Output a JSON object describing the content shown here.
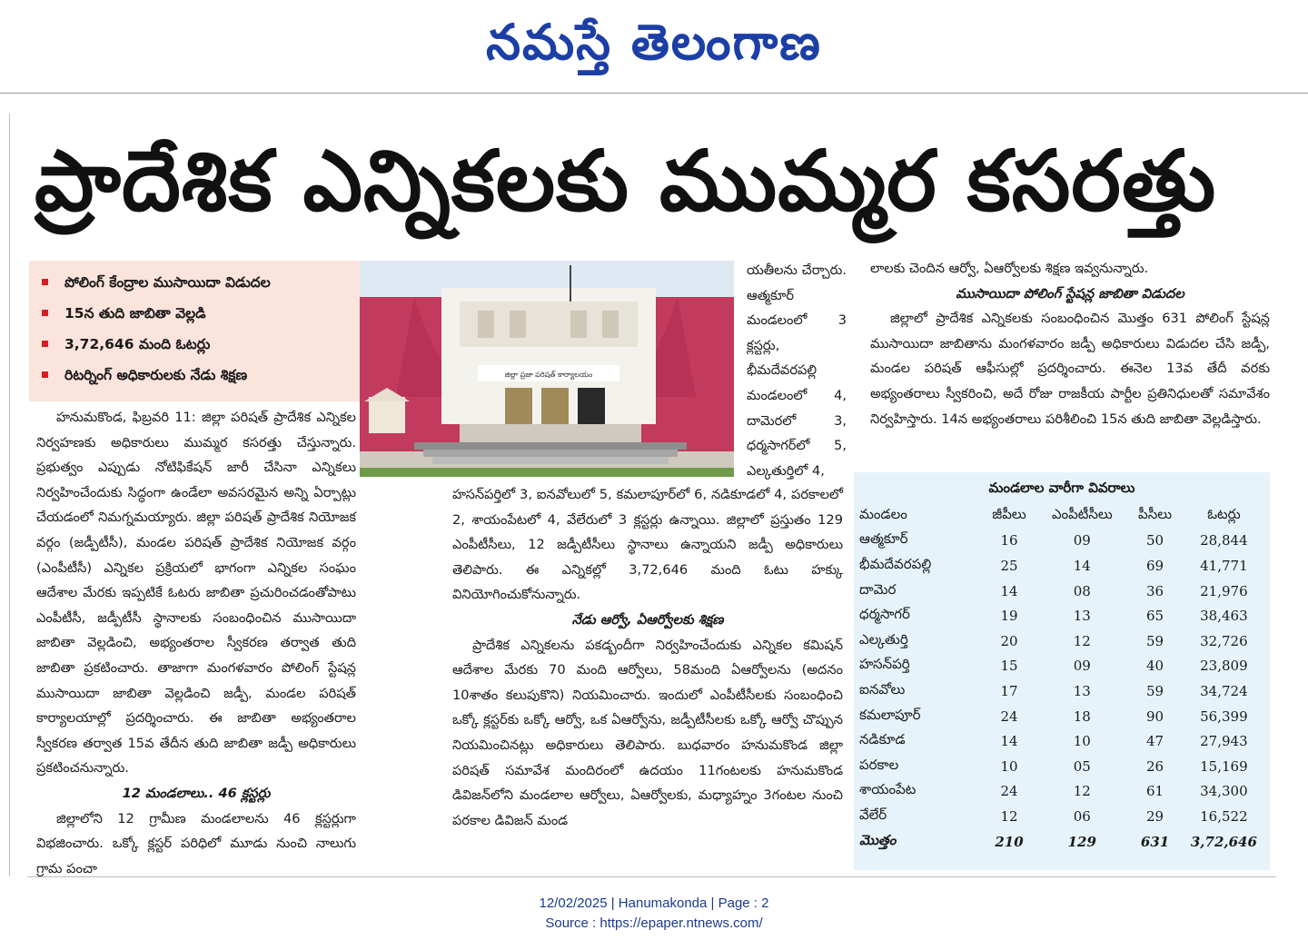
{
  "masthead": {
    "title": "నమస్తే తెలంగాణ"
  },
  "headline": "ప్రాదేశిక ఎన్నికలకు ముమ్మర కసరత్తు",
  "highlights": [
    "పోలింగ్ కేంద్రాల ముసాయిదా విడుదల",
    "15న తుది జాబితా వెల్లడి",
    "3,72,646 మంది ఓటర్లు",
    "రిటర్నింగ్ అధికారులకు నేడు శిక్షణ"
  ],
  "photo": {
    "sign_text": "జిల్లా ప్రజా పరిషత్ కార్యాలయం"
  },
  "col1": {
    "paragraphs": [
      "హనుమకొండ, ఫిబ్రవరి 11: జిల్లా పరిషత్ ప్రాదేశిక ఎన్నికల నిర్వహణకు అధికారులు ముమ్మర కసరత్తు చేస్తున్నారు. ప్రభుత్వం ఎప్పుడు నోటిఫికేషన్ జారీ చేసినా ఎన్నికలు నిర్వహించేందుకు సిద్ధంగా ఉండేలా అవసరమైన అన్ని ఏర్పాట్లు చేయడంలో నిమగ్నమయ్యారు. జిల్లా పరిషత్ ప్రాదేశిక నియోజక వర్గం (జడ్పీటీసీ), మండల పరిషత్ ప్రాదేశిక నియోజక వర్గం (ఎంపీటీసీ) ఎన్నికల ప్రక్రియలో భాగంగా ఎన్నికల సంఘం ఆదేశాల మేరకు ఇప్పటికే ఓటరు జాబితా ప్రచురించడంతోపాటు ఎంపీటీసీ, జడ్పీటీసీ స్థానాలకు సంబంధించిన ముసాయిదా జాబితా వెల్లడించి, అభ్యంతరాల స్వీకరణ తర్వాత తుది జాబితా ప్రకటించారు. తాజాగా మంగళవారం పోలింగ్ స్టేషన్ల ముసాయిదా జాబితా వెల్లడించి జడ్పీ, మండల పరిషత్ కార్యాలయాల్లో ప్రదర్శించారు. ఈ జాబితా అభ్యంతరాల స్వీకరణ తర్వాత 15వ తేదీన తుది జాబితా జడ్పీ అధికారులు ప్రకటించనున్నారు."
    ],
    "subhead": "12 మండలాలు.. 46 క్లస్టర్లు",
    "paragraph2": "జిల్లాలోని 12 గ్రామీణ మండలాలను 46 క్లస్టర్లుగా విభజించారు. ఒక్కో క్లస్టర్ పరిధిలో మూడు నుంచి నాలుగు గ్రామ పంచా"
  },
  "col2_narrow": "యతీలను చేర్చారు. ఆత్మకూర్ మండలంలో 3 క్లస్టర్లు, భీమదేవరపల్లి మండలంలో 4, దామెరలో 3, ధర్మసాగర్‌లో 5, ఎల్కతుర్తిలో 4,",
  "col2_wide": {
    "paragraph1": "హసన్‌పర్తిలో 3, ఐనవోలులో 5, కమలాపూర్‌లో 6, నడికూడలో 4, పరకాలలో 2, శాయంపేటలో 4, వేలేరులో 3 క్లస్టర్లు ఉన్నాయి. జిల్లాలో ప్రస్తుతం 129 ఎంపీటీసీలు, 12 జడ్పీటీసీలు స్థానాలు ఉన్నాయని జడ్పీ అధికారులు తెలిపారు. ఈ ఎన్నికల్లో 3,72,646 మంది ఓటు హక్కు వినియోగించుకోనున్నారు.",
    "subhead": "నేడు ఆర్వో, ఏఆర్వోలకు శిక్షణ",
    "paragraph2": "ప్రాదేశిక ఎన్నికలను పకడ్బందీగా నిర్వహించేందుకు ఎన్నికల కమిషన్ ఆదేశాల మేరకు 70 మంది ఆర్వోలు, 58మంది ఏఆర్వోలను (అదనం 10శాతం కలుపుకొని) నియమించారు. ఇందులో ఎంపీటీసీలకు సంబంధించి ఒక్కో క్లస్టర్‌కు ఒక్కో ఆర్వో, ఒక ఏఆర్వోను, జడ్పీటీసీలకు ఒక్కో ఆర్వో చొప్పున నియమించినట్లు అధికారులు తెలిపారు. బుధవారం హనుమకొండ జిల్లా పరిషత్ సమావేశ మందిరంలో ఉదయం 11గంటలకు హనుమకొండ డివిజన్‌లోని మండలాల ఆర్వోలు, ఏఆర్వోలకు, మధ్యాహ్నం 3గంటల నుంచి పరకాల డివిజన్ మండ"
  },
  "col3": {
    "paragraph1": "లాలకు చెందిన ఆర్వో, ఏఆర్వోలకు శిక్షణ ఇవ్వనున్నారు.",
    "subhead": "ముసాయిదా పోలింగ్ స్టేషన్ల జాబితా విడుదల",
    "paragraph2": "జిల్లాలో ప్రాదేశిక ఎన్నికలకు సంబంధించిన మొత్తం 631 పోలింగ్ స్టేషన్ల ముసాయిదా జాబితాను మంగళవారం జడ్పీ అధికారులు విడుదల చేసి జడ్పీ, మండల పరిషత్ ఆఫీసుల్లో ప్రదర్శించారు. ఈనెల 13వ తేదీ వరకు అభ్యంతరాలు స్వీకరించి, అదే రోజు రాజకీయ పార్టీల ప్రతినిధులతో సమావేశం నిర్వహిస్తారు. 14న అభ్యంతరాలు పరిశీలించి 15న తుది జాబితా వెల్లడిస్తారు."
  },
  "table": {
    "title": "మండలాల వారీగా వివరాలు",
    "headers": [
      "మండలం",
      "జీపీలు",
      "ఎంపీటీసీలు",
      "పీసీలు",
      "ఓటర్లు"
    ],
    "rows": [
      [
        "ఆత్మకూర్",
        "16",
        "09",
        "50",
        "28,844"
      ],
      [
        "భీమదేవరపల్లి",
        "25",
        "14",
        "69",
        "41,771"
      ],
      [
        "దామెర",
        "14",
        "08",
        "36",
        "21,976"
      ],
      [
        "ధర్మసాగర్",
        "19",
        "13",
        "65",
        "38,463"
      ],
      [
        "ఎల్కతుర్తి",
        "20",
        "12",
        "59",
        "32,726"
      ],
      [
        "హసన్‌పర్తి",
        "15",
        "09",
        "40",
        "23,809"
      ],
      [
        "ఐనవోలు",
        "17",
        "13",
        "59",
        "34,724"
      ],
      [
        "కమలాపూర్",
        "24",
        "18",
        "90",
        "56,399"
      ],
      [
        "నడికూడ",
        "14",
        "10",
        "47",
        "27,943"
      ],
      [
        "పరకాల",
        "10",
        "05",
        "26",
        "15,169"
      ],
      [
        "శాయంపేట",
        "24",
        "12",
        "61",
        "34,300"
      ],
      [
        "వేలేర్",
        "12",
        "06",
        "29",
        "16,522"
      ]
    ],
    "total": [
      "మొత్తం",
      "210",
      "129",
      "631",
      "3,72,646"
    ]
  },
  "footer": {
    "line1": "12/02/2025 | Hanumakonda | Page : 2",
    "line2": "Source : https://epaper.ntnews.com/"
  },
  "colors": {
    "masthead": "#1c3fa6",
    "bullet": "#d21d24",
    "highlight_bg": "#fbe4dc",
    "table_bg": "#e6f3fa",
    "footer": "#1c3a8c"
  }
}
